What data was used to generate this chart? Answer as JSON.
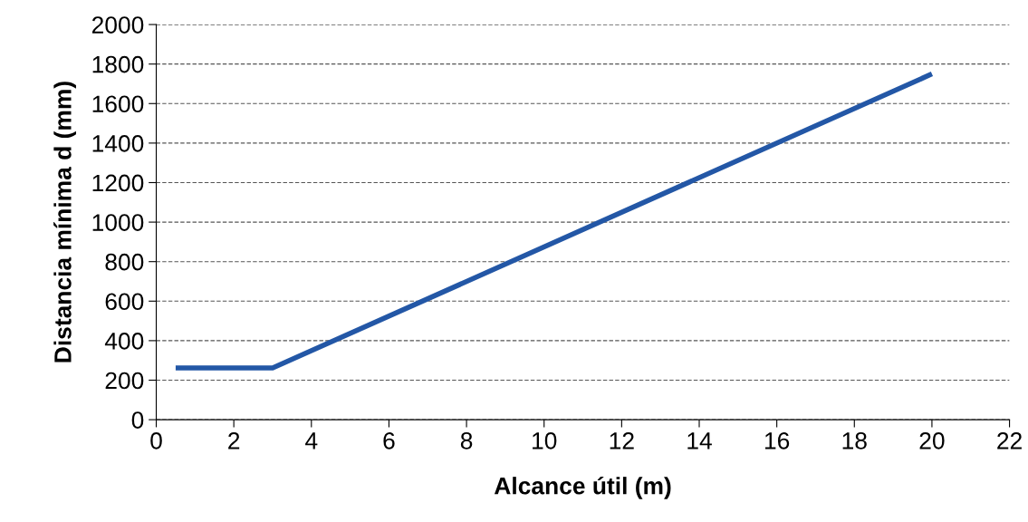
{
  "chart_data": {
    "type": "line",
    "xlabel": "Alcance útil (m)",
    "ylabel": "Distancia mínima d (mm)",
    "x": [
      0.5,
      3,
      20
    ],
    "series": [
      {
        "color": "#2357a6",
        "values": [
          262,
          262,
          1750
        ]
      }
    ],
    "xlim": [
      0,
      22
    ],
    "xticks": [
      0,
      2,
      4,
      6,
      8,
      10,
      12,
      14,
      16,
      18,
      20,
      22
    ],
    "ylim": [
      0,
      2000
    ],
    "yticks": [
      0,
      200,
      400,
      600,
      800,
      1000,
      1200,
      1400,
      1600,
      1800,
      2000
    ],
    "grid": "y",
    "legend": false,
    "marker": "none",
    "line_style": "solid"
  }
}
